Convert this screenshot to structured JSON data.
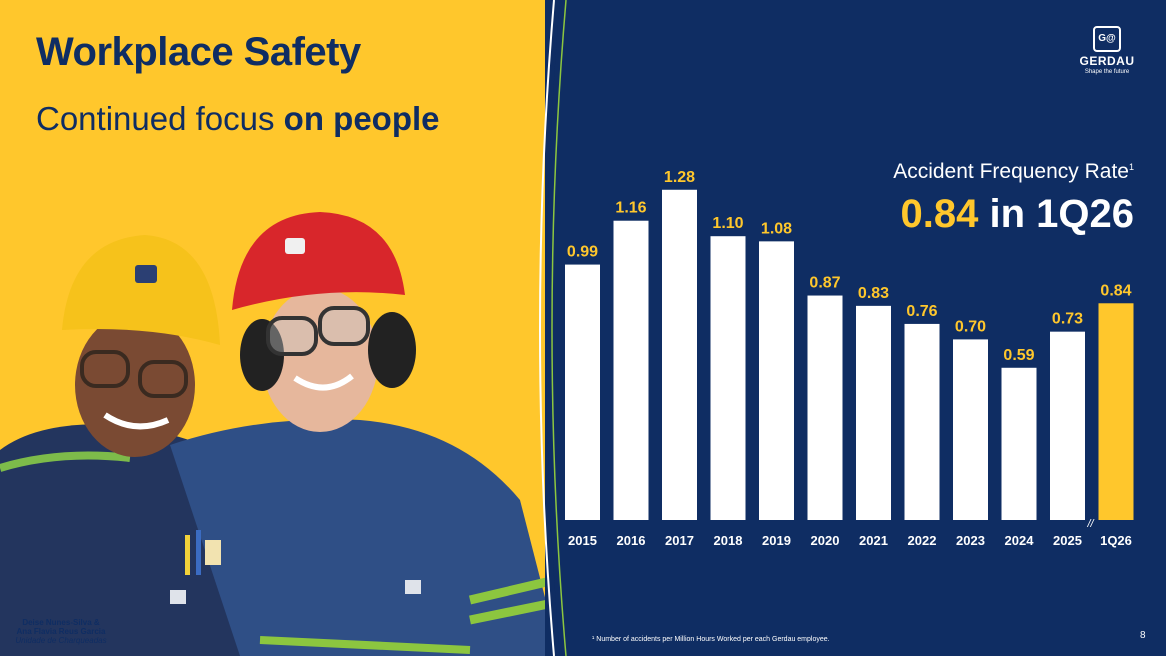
{
  "header": {
    "title": "Workplace Safety",
    "subtitle_regular": "Continued focus",
    "subtitle_bold": "on people"
  },
  "logo": {
    "mark": "G@",
    "name": "GERDAU",
    "tagline": "Shape the future"
  },
  "kpi": {
    "label": "Accident Frequency Rate",
    "footnote_marker": "1",
    "value": "0.84",
    "period": "in 1Q26"
  },
  "photo_caption": {
    "line1": "Deise Nunes-Silva &",
    "line2": "Ana Flavia Reus Garcia",
    "line3": "Unidade de Charqueadas"
  },
  "footnote": "¹ Number of accidents per Million Hours Worked per each Gerdau employee.",
  "page_number": "8",
  "colors": {
    "navy": "#0f2d63",
    "yellow": "#ffc72c",
    "bar_default": "#ffffff",
    "bar_highlight": "#ffc72c"
  },
  "chart_data": {
    "type": "bar",
    "categories": [
      "2015",
      "2016",
      "2017",
      "2018",
      "2019",
      "2020",
      "2021",
      "2022",
      "2023",
      "2024",
      "2025",
      "1Q26"
    ],
    "values": [
      0.99,
      1.16,
      1.28,
      1.1,
      1.08,
      0.87,
      0.83,
      0.76,
      0.7,
      0.59,
      0.73,
      0.84
    ],
    "value_labels": [
      "0.99",
      "1.16",
      "1.28",
      "1.10",
      "1.08",
      "0.87",
      "0.83",
      "0.76",
      "0.70",
      "0.59",
      "0.73",
      "0.84"
    ],
    "highlight_index": 11,
    "axis_break_marker": "//",
    "ylim": [
      0,
      1.3
    ],
    "grid": false,
    "legend": "none"
  }
}
